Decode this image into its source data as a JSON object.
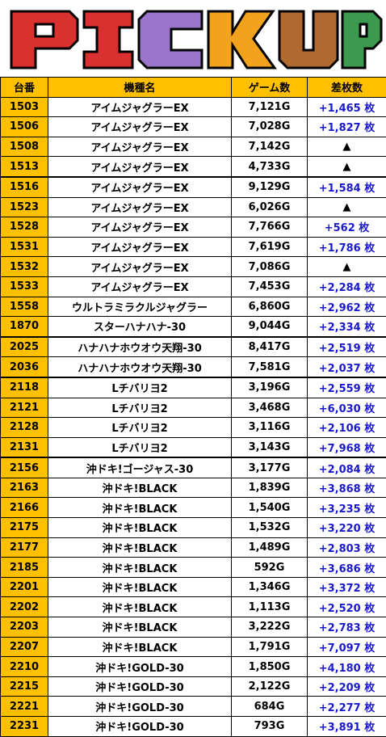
{
  "banner": {
    "title": "PICKUP",
    "letter_colors": [
      "#d93030",
      "#d93030",
      "#9a74c9",
      "#f2a21c",
      "#b06a30",
      "#3c9a50"
    ]
  },
  "table": {
    "headers": [
      "台番",
      "機種名",
      "ゲーム数",
      "差枚数"
    ],
    "rows": [
      {
        "num": "1503",
        "name": "アイムジャグラーEX",
        "games": "7,121G",
        "diff": "+1,465 枚"
      },
      {
        "num": "1506",
        "name": "アイムジャグラーEX",
        "games": "7,028G",
        "diff": "+1,827 枚"
      },
      {
        "num": "1508",
        "name": "アイムジャグラーEX",
        "games": "7,142G",
        "diff": "▲"
      },
      {
        "num": "1513",
        "name": "アイムジャグラーEX",
        "games": "4,733G",
        "diff": "▲"
      },
      {
        "num": "1516",
        "name": "アイムジャグラーEX",
        "games": "9,129G",
        "diff": "+1,584 枚"
      },
      {
        "num": "1523",
        "name": "アイムジャグラーEX",
        "games": "6,026G",
        "diff": "▲"
      },
      {
        "num": "1528",
        "name": "アイムジャグラーEX",
        "games": "7,766G",
        "diff": "+562 枚"
      },
      {
        "num": "1531",
        "name": "アイムジャグラーEX",
        "games": "7,619G",
        "diff": "+1,786 枚"
      },
      {
        "num": "1532",
        "name": "アイムジャグラーEX",
        "games": "7,086G",
        "diff": "▲"
      },
      {
        "num": "1533",
        "name": "アイムジャグラーEX",
        "games": "7,453G",
        "diff": "+2,284 枚"
      },
      {
        "num": "1558",
        "name": "ウルトラミラクルジャグラー",
        "games": "6,860G",
        "diff": "+2,962 枚"
      },
      {
        "num": "1870",
        "name": "スターハナハナ-30",
        "games": "9,044G",
        "diff": "+2,334 枚"
      },
      {
        "num": "2025",
        "name": "ハナハナホウオウ天翔-30",
        "games": "8,417G",
        "diff": "+2,519 枚"
      },
      {
        "num": "2036",
        "name": "ハナハナホウオウ天翔-30",
        "games": "7,581G",
        "diff": "+2,037 枚"
      },
      {
        "num": "2118",
        "name": "Lチバリヨ2",
        "games": "3,196G",
        "diff": "+2,559 枚"
      },
      {
        "num": "2121",
        "name": "Lチバリヨ2",
        "games": "3,468G",
        "diff": "+6,030 枚"
      },
      {
        "num": "2128",
        "name": "Lチバリヨ2",
        "games": "3,116G",
        "diff": "+2,106 枚"
      },
      {
        "num": "2131",
        "name": "Lチバリヨ2",
        "games": "3,143G",
        "diff": "+7,968 枚"
      },
      {
        "num": "2156",
        "name": "沖ドキ!ゴージャス-30",
        "games": "3,177G",
        "diff": "+2,084 枚"
      },
      {
        "num": "2163",
        "name": "沖ドキ!BLACK",
        "games": "1,839G",
        "diff": "+3,868 枚"
      },
      {
        "num": "2166",
        "name": "沖ドキ!BLACK",
        "games": "1,540G",
        "diff": "+3,235 枚"
      },
      {
        "num": "2175",
        "name": "沖ドキ!BLACK",
        "games": "1,532G",
        "diff": "+3,220 枚"
      },
      {
        "num": "2177",
        "name": "沖ドキ!BLACK",
        "games": "1,489G",
        "diff": "+2,803 枚"
      },
      {
        "num": "2185",
        "name": "沖ドキ!BLACK",
        "games": "592G",
        "diff": "+3,686 枚"
      },
      {
        "num": "2201",
        "name": "沖ドキ!BLACK",
        "games": "1,346G",
        "diff": "+3,372 枚"
      },
      {
        "num": "2202",
        "name": "沖ドキ!BLACK",
        "games": "1,113G",
        "diff": "+2,520 枚"
      },
      {
        "num": "2203",
        "name": "沖ドキ!BLACK",
        "games": "3,222G",
        "diff": "+2,783 枚"
      },
      {
        "num": "2207",
        "name": "沖ドキ!BLACK",
        "games": "1,791G",
        "diff": "+7,097 枚"
      },
      {
        "num": "2210",
        "name": "沖ドキ!GOLD-30",
        "games": "1,850G",
        "diff": "+4,180 枚"
      },
      {
        "num": "2215",
        "name": "沖ドキ!GOLD-30",
        "games": "2,122G",
        "diff": "+2,209 枚"
      },
      {
        "num": "2221",
        "name": "沖ドキ!GOLD-30",
        "games": "684G",
        "diff": "+2,277 枚"
      },
      {
        "num": "2231",
        "name": "沖ドキ!GOLD-30",
        "games": "793G",
        "diff": "+3,891 枚"
      }
    ]
  }
}
